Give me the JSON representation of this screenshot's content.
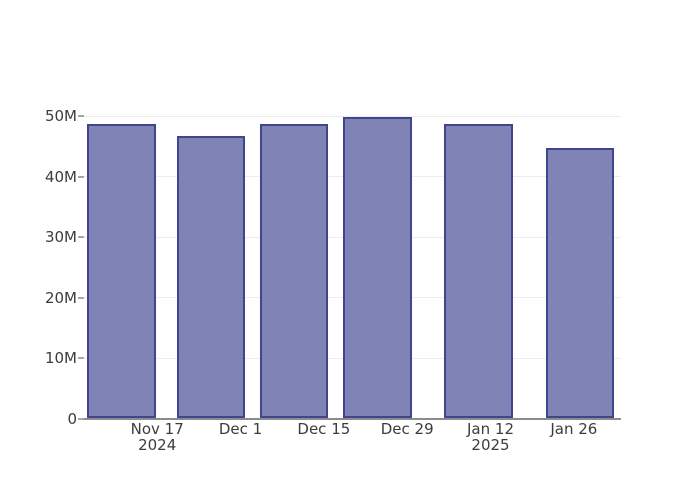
{
  "chart_data": {
    "type": "bar",
    "title": "",
    "xlabel": "",
    "ylabel": "",
    "x_dates": [
      "2024-11-11",
      "2024-11-26",
      "2024-12-10",
      "2024-12-24",
      "2025-01-10",
      "2025-01-27"
    ],
    "values_millions": [
      48.7,
      46.7,
      48.7,
      49.9,
      48.7,
      44.7
    ],
    "ylim": [
      0,
      50
    ],
    "y_ticks": [
      {
        "value": 0,
        "label": "0"
      },
      {
        "value": 10,
        "label": "10M"
      },
      {
        "value": 20,
        "label": "20M"
      },
      {
        "value": 30,
        "label": "30M"
      },
      {
        "value": 40,
        "label": "40M"
      },
      {
        "value": 50,
        "label": "50M"
      }
    ],
    "x_ticks": [
      {
        "date": "2024-11-17",
        "label": "Nov 17",
        "year": "2024"
      },
      {
        "date": "2024-12-01",
        "label": "Dec 1",
        "year": ""
      },
      {
        "date": "2024-12-15",
        "label": "Dec 15",
        "year": ""
      },
      {
        "date": "2024-12-29",
        "label": "Dec 29",
        "year": ""
      },
      {
        "date": "2025-01-12",
        "label": "Jan 12",
        "year": "2025"
      },
      {
        "date": "2025-01-26",
        "label": "Jan 26",
        "year": ""
      }
    ],
    "grid": "horizontal",
    "legend": "none",
    "colors": {
      "bar_fill": "#7f83b5",
      "bar_border": "#41458e",
      "gridline": "#ececec",
      "axis_line": "#8c8c8c",
      "tick_mark": "#a6a6a6",
      "tick_text": "#3c3c3c",
      "background": "#ffffff"
    }
  }
}
